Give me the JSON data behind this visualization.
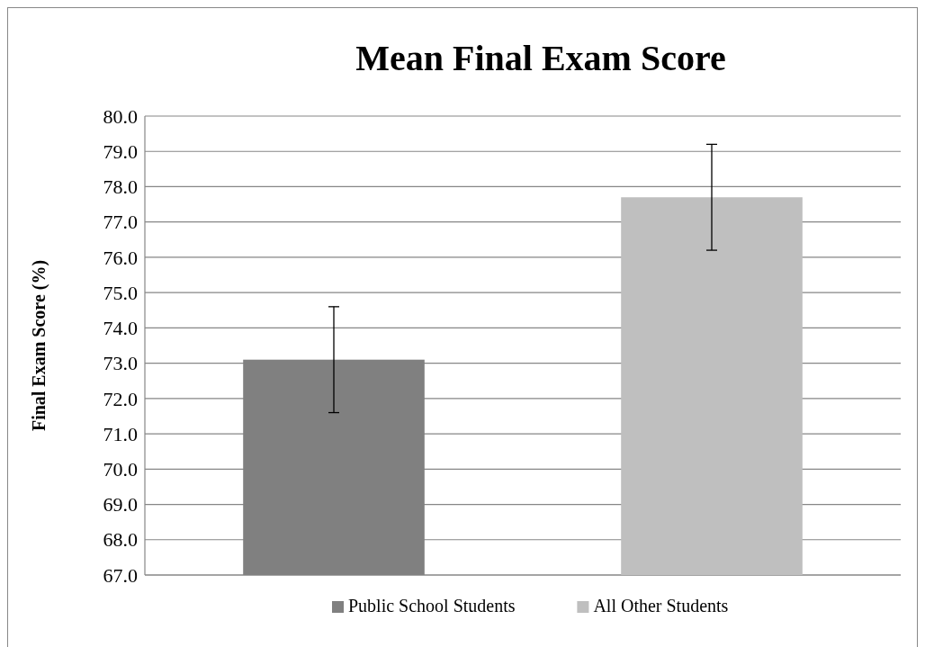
{
  "chart_data": {
    "type": "bar",
    "title": "Mean Final Exam Score",
    "ylabel": "Final Exam Score (%)",
    "categories": [
      null,
      null
    ],
    "series": [
      {
        "name": "Public School Students",
        "color": "#808080",
        "values": [
          73.1,
          null
        ],
        "errors": [
          1.5,
          null
        ]
      },
      {
        "name": "All Other Students",
        "color": "#bfbfbf",
        "values": [
          null,
          77.7
        ],
        "errors": [
          null,
          1.5
        ]
      }
    ],
    "ylim": [
      67,
      80
    ],
    "yticks": [
      {
        "value": 67,
        "label": "67.0"
      },
      {
        "value": 68,
        "label": "68.0"
      },
      {
        "value": 69,
        "label": "69.0"
      },
      {
        "value": 70,
        "label": "70.0"
      },
      {
        "value": 71,
        "label": "71.0"
      },
      {
        "value": 72,
        "label": "72.0"
      },
      {
        "value": 73,
        "label": "73.0"
      },
      {
        "value": 74,
        "label": "74.0"
      },
      {
        "value": 75,
        "label": "75.0"
      },
      {
        "value": 76,
        "label": "76.0"
      },
      {
        "value": 77,
        "label": "77.0"
      },
      {
        "value": 78,
        "label": "78.0"
      },
      {
        "value": 79,
        "label": "79.0"
      },
      {
        "value": 80,
        "label": "80.0"
      }
    ],
    "grid": "y",
    "legend": "bottom"
  }
}
